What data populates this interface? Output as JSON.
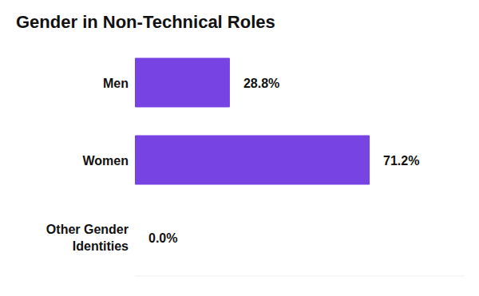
{
  "chart_data": {
    "type": "bar",
    "title": "Gender in Non-Technical Roles",
    "orientation": "horizontal",
    "categories": [
      "Men",
      "Women",
      "Other Gender Identities"
    ],
    "values": [
      28.8,
      71.2,
      0.0
    ],
    "value_labels": [
      "28.8%",
      "71.2%",
      "0.0%"
    ],
    "color": "#7743e3",
    "xlim": [
      0,
      100
    ],
    "data_labels": true,
    "tick_labels": false,
    "grid": false
  }
}
